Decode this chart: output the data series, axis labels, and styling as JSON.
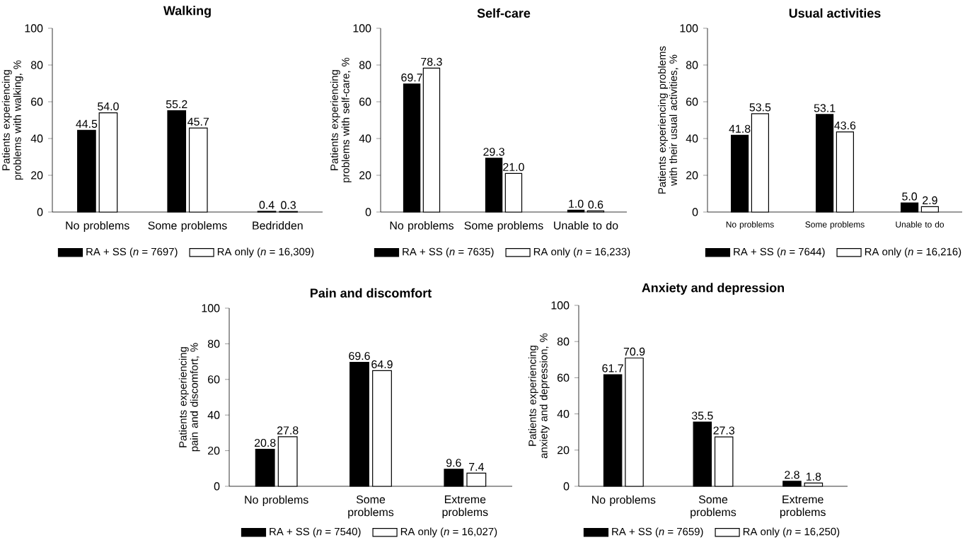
{
  "chart_data": [
    {
      "type": "bar",
      "title": "Walking",
      "ylabel": "Patients experiencing problems with walking, %",
      "categories": [
        "No problems",
        "Some problems",
        "Bedridden"
      ],
      "ylim": [
        0,
        100
      ],
      "yticks": [
        0,
        20,
        40,
        60,
        80,
        100
      ],
      "legend": "bottom",
      "series": [
        {
          "name": "RA + SS (*n* = 7697)",
          "color": "#000000",
          "values": [
            44.5,
            55.2,
            0.4
          ],
          "value_labels": [
            "44.5",
            "55.2",
            "0.4"
          ]
        },
        {
          "name": "RA only (*n* = 16,309)",
          "color": "#ffffff",
          "values": [
            54.0,
            45.7,
            0.3
          ],
          "value_labels": [
            "54.0",
            "45.7",
            "0.3"
          ]
        }
      ]
    },
    {
      "type": "bar",
      "title": "Self-care",
      "ylabel": "Patients experiencing problems with self-care, %",
      "categories": [
        "No problems",
        "Some problems",
        "Unable to do"
      ],
      "ylim": [
        0,
        100
      ],
      "yticks": [
        0,
        20,
        40,
        60,
        80,
        100
      ],
      "legend": "bottom",
      "series": [
        {
          "name": "RA + SS (*n* = 7635)",
          "color": "#000000",
          "values": [
            69.7,
            29.3,
            1.0
          ],
          "value_labels": [
            "69.7",
            "29.3",
            "1.0"
          ]
        },
        {
          "name": "RA only (*n* = 16,233)",
          "color": "#ffffff",
          "values": [
            78.3,
            21.0,
            0.6
          ],
          "value_labels": [
            "78.3",
            "21.0",
            "0.6"
          ]
        }
      ]
    },
    {
      "type": "bar",
      "title": "Usual activities",
      "ylabel": "Patients experiencing problems with their usual activities, %",
      "categories": [
        "No problems",
        "Some problems",
        "Unable to do"
      ],
      "ylim": [
        0,
        100
      ],
      "yticks": [
        0,
        20,
        40,
        60,
        80,
        100
      ],
      "legend": "bottom",
      "series": [
        {
          "name": "RA + SS (*n* = 7644)",
          "color": "#000000",
          "values": [
            41.8,
            53.1,
            5.0
          ],
          "value_labels": [
            "41.8",
            "53.1",
            "5.0"
          ]
        },
        {
          "name": "RA only (*n* = 16,216)",
          "color": "#ffffff",
          "values": [
            53.5,
            43.6,
            2.9
          ],
          "value_labels": [
            "53.5",
            "43.6",
            "2.9"
          ]
        }
      ]
    },
    {
      "type": "bar",
      "title": "Pain and discomfort",
      "ylabel": "Patients experiencing pain and discomfort, %",
      "categories": [
        "No problems",
        "Some problems",
        "Extreme problems"
      ],
      "ylim": [
        0,
        100
      ],
      "yticks": [
        0,
        20,
        40,
        60,
        80,
        100
      ],
      "legend": "bottom",
      "series": [
        {
          "name": "RA + SS (*n* = 7540)",
          "color": "#000000",
          "values": [
            20.8,
            69.6,
            9.6
          ],
          "value_labels": [
            "20.8",
            "69.6",
            "9.6"
          ]
        },
        {
          "name": "RA only (*n* = 16,027)",
          "color": "#ffffff",
          "values": [
            27.8,
            64.9,
            7.4
          ],
          "value_labels": [
            "27.8",
            "64.9",
            "7.4"
          ]
        }
      ]
    },
    {
      "type": "bar",
      "title": "Anxiety and depression",
      "ylabel": "Patients experiencing anxiety and depression, %",
      "categories": [
        "No problems",
        "Some problems",
        "Extreme problems"
      ],
      "ylim": [
        0,
        100
      ],
      "yticks": [
        0,
        20,
        40,
        60,
        80,
        100
      ],
      "legend": "bottom",
      "series": [
        {
          "name": "RA + SS (*n* = 7659)",
          "color": "#000000",
          "values": [
            61.7,
            35.5,
            2.8
          ],
          "value_labels": [
            "61.7",
            "35.5",
            "2.8"
          ]
        },
        {
          "name": "RA only (*n* = 16,250)",
          "color": "#ffffff",
          "values": [
            70.9,
            27.3,
            1.8
          ],
          "value_labels": [
            "70.9",
            "27.3",
            "1.8"
          ]
        }
      ]
    }
  ]
}
